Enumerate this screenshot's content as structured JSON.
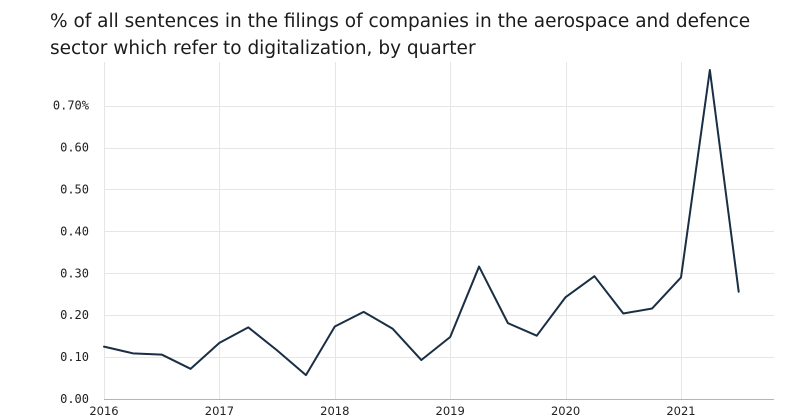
{
  "chart_data": {
    "type": "line",
    "title_lines": [
      "% of all sentences in the filings of companies in the aerospace and defence",
      "sector which refer to digitalization, by quarter"
    ],
    "xlabel": "",
    "ylabel": "",
    "x_ticks": [
      2016,
      2017,
      2018,
      2019,
      2020,
      2021
    ],
    "x_range": [
      2016,
      2021.75
    ],
    "y_ticks": [
      {
        "value": 0.0,
        "label": "0.00"
      },
      {
        "value": 0.1,
        "label": "0.10"
      },
      {
        "value": 0.2,
        "label": "0.20"
      },
      {
        "value": 0.3,
        "label": "0.30"
      },
      {
        "value": 0.4,
        "label": "0.40"
      },
      {
        "value": 0.5,
        "label": "0.50"
      },
      {
        "value": 0.6,
        "label": "0.60"
      },
      {
        "value": 0.7,
        "label": "0.70%"
      }
    ],
    "ylim": [
      0,
      0.785
    ],
    "grid": true,
    "series": [
      {
        "color": "#1a2e44",
        "points": [
          {
            "x": 2016.0,
            "y": 0.125
          },
          {
            "x": 2016.25,
            "y": 0.109
          },
          {
            "x": 2016.5,
            "y": 0.106
          },
          {
            "x": 2016.75,
            "y": 0.072
          },
          {
            "x": 2017.0,
            "y": 0.134
          },
          {
            "x": 2017.25,
            "y": 0.171
          },
          {
            "x": 2017.5,
            "y": 0.116
          },
          {
            "x": 2017.75,
            "y": 0.057
          },
          {
            "x": 2018.0,
            "y": 0.173
          },
          {
            "x": 2018.25,
            "y": 0.208
          },
          {
            "x": 2018.5,
            "y": 0.168
          },
          {
            "x": 2018.75,
            "y": 0.093
          },
          {
            "x": 2019.0,
            "y": 0.148
          },
          {
            "x": 2019.25,
            "y": 0.316
          },
          {
            "x": 2019.5,
            "y": 0.181
          },
          {
            "x": 2019.75,
            "y": 0.151
          },
          {
            "x": 2020.0,
            "y": 0.243
          },
          {
            "x": 2020.25,
            "y": 0.293
          },
          {
            "x": 2020.5,
            "y": 0.204
          },
          {
            "x": 2020.75,
            "y": 0.216
          },
          {
            "x": 2021.0,
            "y": 0.29
          },
          {
            "x": 2021.25,
            "y": 0.785
          },
          {
            "x": 2021.5,
            "y": 0.256
          }
        ]
      }
    ]
  }
}
